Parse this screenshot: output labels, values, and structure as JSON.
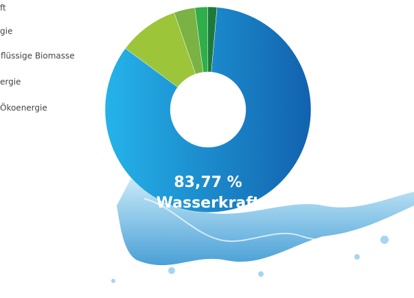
{
  "chart_data": {
    "type": "donut",
    "categories": [
      "ft",
      "gie",
      "flüssige Biomasse",
      "ergie",
      "Ökoenergie"
    ],
    "values": [
      83.77,
      9.5,
      3.3,
      2.0,
      1.43
    ],
    "value_labels": [
      "83,77 %",
      null,
      null,
      null,
      null
    ],
    "colors": [
      "#1a86cf",
      "#9cc53a",
      "#7bb244",
      "#2fae4a",
      "#1d7a3a"
    ],
    "center_label": "Wasserkraft"
  }
}
